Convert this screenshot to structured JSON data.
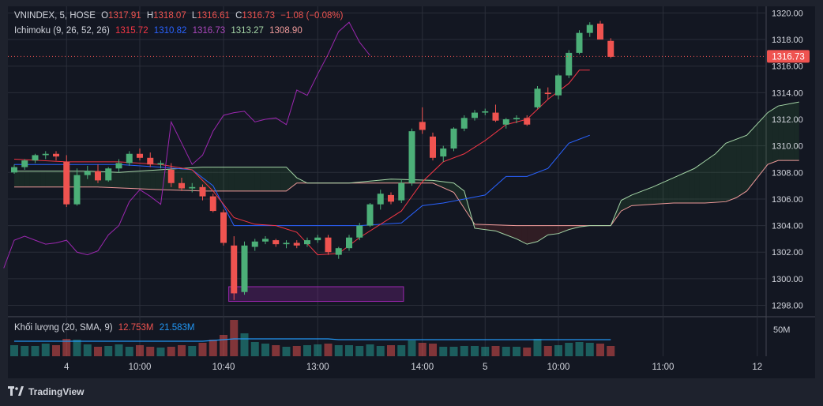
{
  "theme": {
    "background": "#1e222d",
    "pane": "#131722",
    "grid": "#2a2e39",
    "text": "#d1d4dc",
    "up": "#26a69a",
    "up_candle": "#4caf78",
    "down": "#ef5350",
    "tenkan": "#f23645",
    "kijun": "#2962ff",
    "lagging": "#9c27b0",
    "span_a": "#a5d6a7",
    "span_b": "#ef9a9a",
    "volume_ma": "#2196f3"
  },
  "header": {
    "symbol": "VNINDEX, 5, HOSE",
    "o_label": "O",
    "o_value": "1317.91",
    "h_label": "H",
    "h_value": "1318.07",
    "l_label": "L",
    "l_value": "1316.61",
    "c_label": "C",
    "c_value": "1316.73",
    "change": "−1.08 (−0.08%)"
  },
  "ichimoku_legend": {
    "name": "Ichimoku (9, 26, 52, 26)",
    "tenkan": "1315.72",
    "kijun": "1310.82",
    "lagging": "1316.73",
    "span_a": "1313.27",
    "span_b": "1308.90"
  },
  "volume_legend": {
    "name": "Khối lượng (20, SMA, 9)",
    "volume": "12.753M",
    "ma": "21.583M"
  },
  "price_label": "1316.73",
  "volume_axis_label": "50M",
  "brand": "TradingView",
  "chart_data": {
    "type": "candlestick",
    "y_ticks": [
      "1320.00",
      "1318.00",
      "1316.00",
      "1314.00",
      "1312.00",
      "1310.00",
      "1308.00",
      "1306.00",
      "1304.00",
      "1302.00",
      "1300.00",
      "1298.00"
    ],
    "ylim": [
      1297.2,
      1320.5
    ],
    "x_tick_labels": [
      {
        "label": "4",
        "i": 5
      },
      {
        "label": "10:00",
        "i": 12
      },
      {
        "label": "10:40",
        "i": 20
      },
      {
        "label": "13:00",
        "i": 29
      },
      {
        "label": "14:00",
        "i": 39
      },
      {
        "label": "5",
        "i": 45
      },
      {
        "label": "10:00",
        "i": 52
      },
      {
        "label": "11:00",
        "i": 62
      },
      {
        "label": "12",
        "i": 71
      }
    ],
    "last_price": 1316.73,
    "candles": [
      [
        1308.0,
        1308.6,
        1307.9,
        1308.4
      ],
      [
        1308.4,
        1309.0,
        1308.2,
        1308.9
      ],
      [
        1308.9,
        1309.4,
        1308.7,
        1309.3
      ],
      [
        1309.3,
        1309.6,
        1309.0,
        1309.4
      ],
      [
        1309.4,
        1309.6,
        1308.9,
        1309.2
      ],
      [
        1308.8,
        1309.3,
        1305.4,
        1305.6
      ],
      [
        1305.6,
        1308.3,
        1305.5,
        1307.8
      ],
      [
        1307.8,
        1308.5,
        1307.5,
        1308.1
      ],
      [
        1308.1,
        1308.6,
        1307.2,
        1307.4
      ],
      [
        1307.4,
        1308.4,
        1307.3,
        1308.3
      ],
      [
        1308.3,
        1309.0,
        1308.0,
        1308.7
      ],
      [
        1308.7,
        1309.6,
        1308.5,
        1309.4
      ],
      [
        1309.4,
        1309.8,
        1308.9,
        1309.1
      ],
      [
        1309.1,
        1309.5,
        1308.4,
        1308.6
      ],
      [
        1308.6,
        1308.9,
        1308.3,
        1308.7
      ],
      [
        1308.2,
        1308.7,
        1306.9,
        1307.2
      ],
      [
        1307.2,
        1307.6,
        1306.6,
        1306.8
      ],
      [
        1306.8,
        1307.2,
        1306.5,
        1306.9
      ],
      [
        1306.9,
        1307.1,
        1305.9,
        1306.2
      ],
      [
        1306.2,
        1306.4,
        1305.0,
        1305.1
      ],
      [
        1305.0,
        1305.2,
        1302.5,
        1302.7
      ],
      [
        1302.5,
        1303.2,
        1298.4,
        1298.9
      ],
      [
        1299.0,
        1302.8,
        1298.8,
        1302.5
      ],
      [
        1302.4,
        1303.0,
        1302.1,
        1302.8
      ],
      [
        1302.8,
        1303.2,
        1302.6,
        1303.0
      ],
      [
        1302.9,
        1303.0,
        1302.4,
        1302.6
      ],
      [
        1302.6,
        1302.9,
        1302.3,
        1302.7
      ],
      [
        1302.7,
        1302.9,
        1302.3,
        1302.5
      ],
      [
        1302.6,
        1303.1,
        1302.4,
        1302.9
      ],
      [
        1302.9,
        1303.3,
        1302.7,
        1303.1
      ],
      [
        1303.1,
        1303.3,
        1301.8,
        1302.0
      ],
      [
        1301.8,
        1302.4,
        1301.5,
        1302.3
      ],
      [
        1302.3,
        1303.3,
        1302.1,
        1303.1
      ],
      [
        1303.1,
        1304.2,
        1302.9,
        1304.0
      ],
      [
        1304.0,
        1305.7,
        1303.9,
        1305.6
      ],
      [
        1305.6,
        1306.7,
        1305.2,
        1306.4
      ],
      [
        1306.3,
        1306.5,
        1305.6,
        1305.8
      ],
      [
        1305.9,
        1307.5,
        1305.7,
        1307.2
      ],
      [
        1307.2,
        1311.3,
        1307.0,
        1311.1
      ],
      [
        1311.8,
        1312.9,
        1310.9,
        1311.2
      ],
      [
        1310.7,
        1311.0,
        1308.9,
        1309.1
      ],
      [
        1309.2,
        1310.0,
        1308.8,
        1309.8
      ],
      [
        1309.8,
        1311.4,
        1309.6,
        1311.3
      ],
      [
        1311.3,
        1312.3,
        1311.1,
        1312.1
      ],
      [
        1312.1,
        1312.7,
        1311.9,
        1312.5
      ],
      [
        1312.5,
        1312.8,
        1312.3,
        1312.6
      ],
      [
        1312.5,
        1313.1,
        1311.8,
        1311.9
      ],
      [
        1311.6,
        1312.1,
        1311.3,
        1312.0
      ],
      [
        1312.0,
        1312.3,
        1311.7,
        1312.1
      ],
      [
        1312.1,
        1312.3,
        1311.5,
        1311.6
      ],
      [
        1312.9,
        1314.5,
        1312.8,
        1314.3
      ],
      [
        1314.0,
        1314.4,
        1313.5,
        1313.9
      ],
      [
        1313.8,
        1315.4,
        1313.5,
        1315.3
      ],
      [
        1315.3,
        1317.2,
        1315.1,
        1317.0
      ],
      [
        1317.0,
        1318.7,
        1316.9,
        1318.5
      ],
      [
        1318.5,
        1319.3,
        1318.2,
        1319.1
      ],
      [
        1319.2,
        1319.4,
        1318.0,
        1318.0
      ],
      [
        1317.9,
        1318.1,
        1316.6,
        1316.7
      ]
    ],
    "tenkan": [
      [
        0,
        1309.0
      ],
      [
        5,
        1308.8
      ],
      [
        10,
        1308.8
      ],
      [
        14,
        1308.6
      ],
      [
        17,
        1308.2
      ],
      [
        19,
        1306.6
      ],
      [
        21,
        1304.6
      ],
      [
        23,
        1304.1
      ],
      [
        25,
        1304.0
      ],
      [
        27,
        1303.5
      ],
      [
        29,
        1301.8
      ],
      [
        31,
        1301.9
      ],
      [
        33,
        1303.1
      ],
      [
        35,
        1304.1
      ],
      [
        37,
        1305.1
      ],
      [
        39,
        1307.3
      ],
      [
        41,
        1308.8
      ],
      [
        43,
        1309.4
      ],
      [
        45,
        1310.4
      ],
      [
        47,
        1311.6
      ],
      [
        49,
        1312.0
      ],
      [
        51,
        1313.5
      ],
      [
        53,
        1314.7
      ],
      [
        54,
        1315.7
      ],
      [
        55,
        1315.7
      ]
    ],
    "kijun": [
      [
        0,
        1308.6
      ],
      [
        10,
        1308.6
      ],
      [
        14,
        1308.4
      ],
      [
        17,
        1308.2
      ],
      [
        19,
        1307.0
      ],
      [
        21,
        1304.0
      ],
      [
        25,
        1304.0
      ],
      [
        29,
        1304.0
      ],
      [
        33,
        1304.0
      ],
      [
        37,
        1304.2
      ],
      [
        39,
        1305.5
      ],
      [
        41,
        1305.7
      ],
      [
        43,
        1306.0
      ],
      [
        45,
        1306.3
      ],
      [
        47,
        1307.7
      ],
      [
        49,
        1307.7
      ],
      [
        51,
        1308.3
      ],
      [
        53,
        1310.2
      ],
      [
        54,
        1310.5
      ],
      [
        55,
        1310.8
      ]
    ],
    "lagging": [
      [
        -1,
        1300.8
      ],
      [
        0,
        1302.9
      ],
      [
        1,
        1303.2
      ],
      [
        2,
        1302.9
      ],
      [
        3,
        1302.6
      ],
      [
        4,
        1302.7
      ],
      [
        5,
        1302.9
      ],
      [
        6,
        1302.0
      ],
      [
        7,
        1301.8
      ],
      [
        8,
        1302.1
      ],
      [
        9,
        1303.3
      ],
      [
        10,
        1304.0
      ],
      [
        11,
        1305.8
      ],
      [
        12,
        1306.7
      ],
      [
        13,
        1306.2
      ],
      [
        14,
        1305.6
      ],
      [
        15,
        1311.8
      ],
      [
        16,
        1310.2
      ],
      [
        17,
        1308.6
      ],
      [
        18,
        1309.3
      ],
      [
        19,
        1311.1
      ],
      [
        20,
        1312.3
      ],
      [
        21,
        1312.5
      ],
      [
        22,
        1312.6
      ],
      [
        23,
        1311.8
      ],
      [
        24,
        1312.0
      ],
      [
        25,
        1312.1
      ],
      [
        26,
        1311.6
      ],
      [
        27,
        1314.2
      ],
      [
        28,
        1313.8
      ],
      [
        29,
        1315.4
      ],
      [
        30,
        1316.9
      ],
      [
        31,
        1318.6
      ],
      [
        32,
        1319.3
      ],
      [
        33,
        1317.8
      ],
      [
        34,
        1316.8
      ]
    ],
    "span_a": [
      [
        0,
        1308.1
      ],
      [
        7,
        1308.1
      ],
      [
        10,
        1308.0
      ],
      [
        14,
        1308.2
      ],
      [
        18,
        1308.4
      ],
      [
        22,
        1308.4
      ],
      [
        26,
        1308.4
      ],
      [
        27,
        1307.6
      ],
      [
        28,
        1307.2
      ],
      [
        32,
        1307.2
      ],
      [
        36,
        1307.5
      ],
      [
        40,
        1307.4
      ],
      [
        42,
        1307.2
      ],
      [
        43,
        1306.6
      ],
      [
        44,
        1303.8
      ],
      [
        46,
        1303.6
      ],
      [
        48,
        1303.0
      ],
      [
        49,
        1302.6
      ],
      [
        50,
        1302.8
      ],
      [
        51,
        1303.3
      ],
      [
        52,
        1303.4
      ],
      [
        53,
        1303.7
      ],
      [
        54,
        1303.9
      ],
      [
        55,
        1304.0
      ],
      [
        57,
        1304.0
      ],
      [
        58,
        1305.9
      ],
      [
        59,
        1306.3
      ],
      [
        61,
        1306.9
      ],
      [
        63,
        1307.6
      ],
      [
        65,
        1308.3
      ],
      [
        67,
        1309.4
      ],
      [
        68,
        1310.2
      ],
      [
        70,
        1310.8
      ],
      [
        72,
        1312.5
      ],
      [
        73,
        1313.0
      ],
      [
        75,
        1313.3
      ]
    ],
    "span_b": [
      [
        0,
        1306.9
      ],
      [
        8,
        1306.9
      ],
      [
        14,
        1306.7
      ],
      [
        18,
        1306.6
      ],
      [
        22,
        1306.6
      ],
      [
        26,
        1306.6
      ],
      [
        27,
        1307.2
      ],
      [
        30,
        1307.2
      ],
      [
        35,
        1307.2
      ],
      [
        40,
        1307.2
      ],
      [
        42,
        1306.5
      ],
      [
        43,
        1305.3
      ],
      [
        44,
        1304.1
      ],
      [
        48,
        1304.0
      ],
      [
        52,
        1304.0
      ],
      [
        55,
        1304.0
      ],
      [
        57,
        1304.0
      ],
      [
        58,
        1305.1
      ],
      [
        59,
        1305.5
      ],
      [
        61,
        1305.6
      ],
      [
        63,
        1305.7
      ],
      [
        66,
        1305.7
      ],
      [
        68,
        1305.8
      ],
      [
        69,
        1306.1
      ],
      [
        70,
        1306.6
      ],
      [
        71,
        1307.6
      ],
      [
        72,
        1308.6
      ],
      [
        73,
        1308.9
      ],
      [
        75,
        1308.9
      ]
    ],
    "volume_scale_max": 50,
    "volume": [
      14,
      13,
      13,
      16,
      14,
      22,
      21,
      15,
      12,
      13,
      15,
      12,
      14,
      12,
      11,
      12,
      14,
      13,
      17,
      21,
      27,
      46,
      29,
      18,
      16,
      14,
      12,
      13,
      14,
      15,
      16,
      14,
      14,
      13,
      15,
      13,
      14,
      14,
      20,
      17,
      16,
      12,
      12,
      13,
      13,
      12,
      13,
      12,
      12,
      11,
      22,
      13,
      14,
      17,
      18,
      17,
      16,
      13
    ],
    "volume_ma": [
      19,
      19,
      19,
      19,
      19,
      19,
      19,
      19,
      19,
      19,
      19,
      19,
      19,
      19,
      19,
      19,
      19,
      19,
      19,
      20,
      21,
      22,
      22,
      22,
      22,
      22,
      22,
      22,
      22,
      22,
      22,
      21,
      21,
      21,
      21,
      21,
      21,
      21,
      21,
      21,
      21,
      21,
      21,
      21,
      21,
      21,
      21,
      21,
      21,
      21,
      21,
      21,
      21,
      21,
      21,
      21,
      21,
      21
    ],
    "purple_box": {
      "i_start": 20.5,
      "i_end": 37.2,
      "low": 1298.3,
      "high": 1299.4
    }
  }
}
